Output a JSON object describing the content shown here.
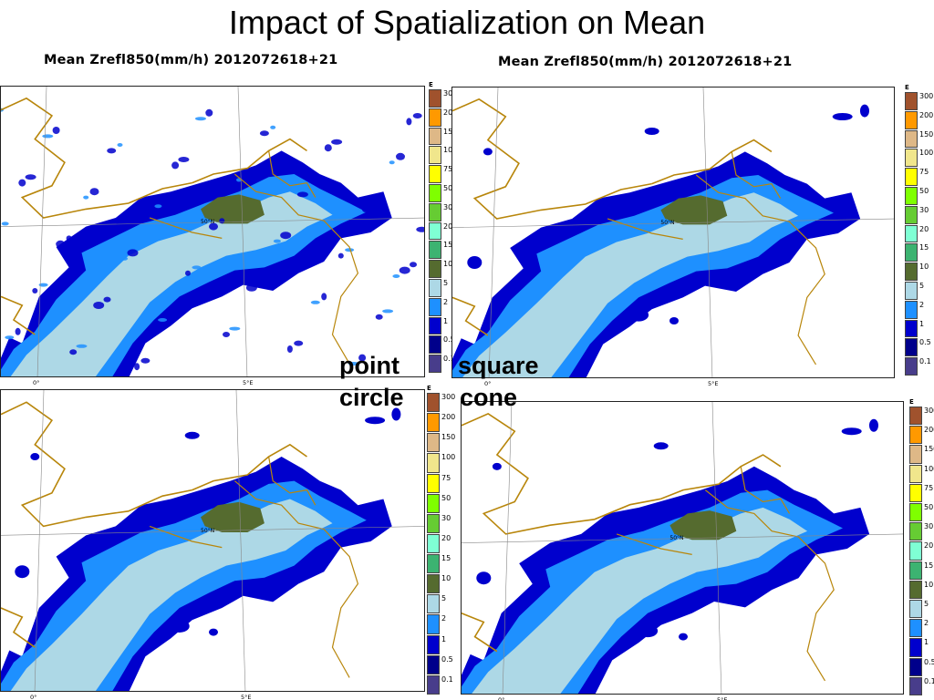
{
  "slide": {
    "title": "Impact of Spatialization on Mean"
  },
  "panels": [
    {
      "id": "top-left",
      "title": "Mean Zrefl850(mm/h) 2012072618+21",
      "method": "point",
      "lon_ticks": [
        "0°",
        "5°E"
      ],
      "lat_label": "50°N"
    },
    {
      "id": "top-right",
      "title": "Mean Zrefl850(mm/h) 2012072618+21",
      "method": "square",
      "lon_ticks": [
        "0°",
        "5°E"
      ],
      "lat_label": "50°N"
    },
    {
      "id": "bottom-left",
      "title": "",
      "method": "circle",
      "lon_ticks": [
        "0°",
        "5°E"
      ],
      "lat_label": "50°N"
    },
    {
      "id": "bottom-right",
      "title": "",
      "method": "cone",
      "lon_ticks": [
        "0°",
        "5°E"
      ],
      "lat_label": "50°N"
    }
  ],
  "method_labels": {
    "point": "point",
    "circle": "circle",
    "square": "square",
    "cone": "cone"
  },
  "colorbar": {
    "unit_letter": "E",
    "levels": [
      "300",
      "200",
      "150",
      "100",
      "75",
      "50",
      "30",
      "20",
      "15",
      "10",
      "5",
      "2",
      "1",
      "0.5",
      "0.1"
    ],
    "colors": [
      "#a0522d",
      "#ff9900",
      "#deb887",
      "#f0e68c",
      "#ffff00",
      "#7fff00",
      "#66cc33",
      "#7fffd4",
      "#3cb371",
      "#556b2f",
      "#add8e6",
      "#1e90ff",
      "#0000cd",
      "#00008b",
      "#483d8b"
    ]
  },
  "map_colors": {
    "light": "#add8e6",
    "mid": "#1e90ff",
    "dark": "#0000cd",
    "core": "#556b2f",
    "border": "#b8860b",
    "grid": "#888888"
  }
}
